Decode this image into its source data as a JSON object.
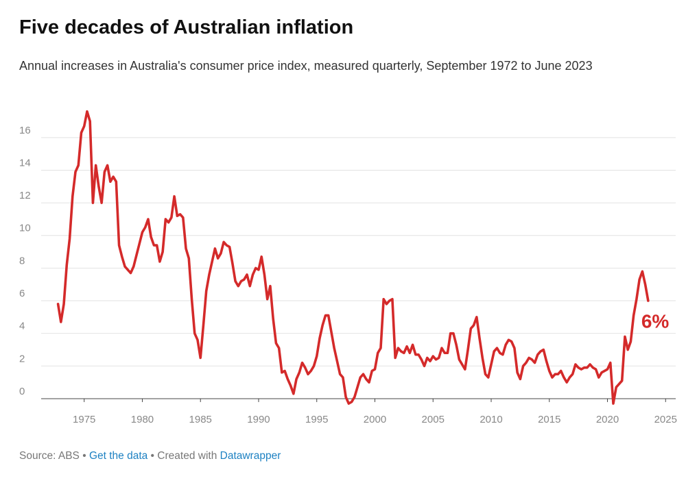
{
  "chart_data": {
    "type": "line",
    "title": "Five decades of Australian inflation",
    "subtitle": "Annual increases in Australia's consumer price index, measured quarterly, September 1972 to June 2023",
    "annotation": "6%",
    "footer": [
      "Source: ABS",
      " • ",
      "Get the data",
      " • ",
      "Created with ",
      "Datawrapper"
    ],
    "color": "#d42a2a",
    "grid": true,
    "xlim": [
      1971.3,
      2026.4
    ],
    "ylim": [
      -0.8,
      17.8
    ],
    "xticks": [
      1975,
      1980,
      1985,
      1990,
      1995,
      2000,
      2005,
      2010,
      2015,
      2020,
      2025
    ],
    "yticks": [
      0,
      2,
      4,
      6,
      8,
      10,
      12,
      14,
      16
    ],
    "x": [
      1972.75,
      1973,
      1973.25,
      1973.5,
      1973.75,
      1974,
      1974.25,
      1974.5,
      1974.75,
      1975,
      1975.25,
      1975.5,
      1975.75,
      1976,
      1976.25,
      1976.5,
      1976.75,
      1977,
      1977.25,
      1977.5,
      1977.75,
      1978,
      1978.25,
      1978.5,
      1978.75,
      1979,
      1979.25,
      1979.5,
      1979.75,
      1980,
      1980.25,
      1980.5,
      1980.75,
      1981,
      1981.25,
      1981.5,
      1981.75,
      1982,
      1982.25,
      1982.5,
      1982.75,
      1983,
      1983.25,
      1983.5,
      1983.75,
      1984,
      1984.25,
      1984.5,
      1984.75,
      1985,
      1985.25,
      1985.5,
      1985.75,
      1986,
      1986.25,
      1986.5,
      1986.75,
      1987,
      1987.25,
      1987.5,
      1987.75,
      1988,
      1988.25,
      1988.5,
      1988.75,
      1989,
      1989.25,
      1989.5,
      1989.75,
      1990,
      1990.25,
      1990.5,
      1990.75,
      1991,
      1991.25,
      1991.5,
      1991.75,
      1992,
      1992.25,
      1992.5,
      1992.75,
      1993,
      1993.25,
      1993.5,
      1993.75,
      1994,
      1994.25,
      1994.5,
      1994.75,
      1995,
      1995.25,
      1995.5,
      1995.75,
      1996,
      1996.25,
      1996.5,
      1996.75,
      1997,
      1997.25,
      1997.5,
      1997.75,
      1998,
      1998.25,
      1998.5,
      1998.75,
      1999,
      1999.25,
      1999.5,
      1999.75,
      2000,
      2000.25,
      2000.5,
      2000.75,
      2001,
      2001.25,
      2001.5,
      2001.75,
      2002,
      2002.25,
      2002.5,
      2002.75,
      2003,
      2003.25,
      2003.5,
      2003.75,
      2004,
      2004.25,
      2004.5,
      2004.75,
      2005,
      2005.25,
      2005.5,
      2005.75,
      2006,
      2006.25,
      2006.5,
      2006.75,
      2007,
      2007.25,
      2007.5,
      2007.75,
      2008,
      2008.25,
      2008.5,
      2008.75,
      2009,
      2009.25,
      2009.5,
      2009.75,
      2010,
      2010.25,
      2010.5,
      2010.75,
      2011,
      2011.25,
      2011.5,
      2011.75,
      2012,
      2012.25,
      2012.5,
      2012.75,
      2013,
      2013.25,
      2013.5,
      2013.75,
      2014,
      2014.25,
      2014.5,
      2014.75,
      2015,
      2015.25,
      2015.5,
      2015.75,
      2016,
      2016.25,
      2016.5,
      2016.75,
      2017,
      2017.25,
      2017.5,
      2017.75,
      2018,
      2018.25,
      2018.5,
      2018.75,
      2019,
      2019.25,
      2019.5,
      2019.75,
      2020,
      2020.25,
      2020.5,
      2020.75,
      2021,
      2021.25,
      2021.5,
      2021.75,
      2022,
      2022.25,
      2022.5,
      2022.75,
      2023,
      2023.25,
      2023.5
    ],
    "values": [
      5.8,
      4.7,
      5.8,
      8.2,
      9.8,
      12.4,
      13.9,
      14.3,
      16.3,
      16.7,
      17.6,
      17.0,
      12.0,
      14.3,
      13.0,
      12.0,
      13.9,
      14.3,
      13.3,
      13.6,
      13.3,
      9.4,
      8.7,
      8.1,
      7.9,
      7.7,
      8.1,
      8.8,
      9.5,
      10.2,
      10.5,
      11.0,
      9.9,
      9.4,
      9.4,
      8.4,
      9.0,
      11.0,
      10.8,
      11.1,
      12.4,
      11.2,
      11.3,
      11.1,
      9.2,
      8.6,
      6.1,
      4.0,
      3.6,
      2.5,
      4.5,
      6.6,
      7.6,
      8.4,
      9.2,
      8.6,
      8.9,
      9.6,
      9.4,
      9.3,
      8.3,
      7.2,
      6.9,
      7.2,
      7.3,
      7.6,
      6.9,
      7.6,
      8.0,
      7.9,
      8.7,
      7.6,
      6.1,
      6.9,
      4.9,
      3.4,
      3.1,
      1.6,
      1.7,
      1.2,
      0.8,
      0.3,
      1.2,
      1.6,
      2.2,
      1.9,
      1.5,
      1.7,
      2.0,
      2.6,
      3.7,
      4.5,
      5.1,
      5.1,
      4.1,
      3.1,
      2.3,
      1.5,
      1.3,
      0.1,
      -0.3,
      -0.2,
      0.1,
      0.7,
      1.3,
      1.5,
      1.2,
      1.0,
      1.7,
      1.8,
      2.8,
      3.1,
      6.1,
      5.8,
      6.0,
      6.1,
      2.5,
      3.1,
      2.9,
      2.8,
      3.2,
      2.8,
      3.3,
      2.7,
      2.7,
      2.4,
      2.0,
      2.5,
      2.3,
      2.6,
      2.4,
      2.5,
      3.1,
      2.8,
      2.8,
      4.0,
      4.0,
      3.3,
      2.4,
      2.1,
      1.8,
      3.0,
      4.3,
      4.5,
      5.0,
      3.7,
      2.5,
      1.5,
      1.3,
      2.1,
      2.9,
      3.1,
      2.8,
      2.7,
      3.3,
      3.6,
      3.5,
      3.1,
      1.6,
      1.2,
      2.0,
      2.2,
      2.5,
      2.4,
      2.2,
      2.7,
      2.9,
      3.0,
      2.3,
      1.7,
      1.3,
      1.5,
      1.5,
      1.7,
      1.3,
      1.0,
      1.3,
      1.5,
      2.1,
      1.9,
      1.8,
      1.9,
      1.9,
      2.1,
      1.9,
      1.8,
      1.3,
      1.6,
      1.7,
      1.8,
      2.2,
      -0.3,
      0.7,
      0.9,
      1.1,
      3.8,
      3.0,
      3.5,
      5.1,
      6.1,
      7.3,
      7.8,
      7.0,
      6.0
    ]
  }
}
